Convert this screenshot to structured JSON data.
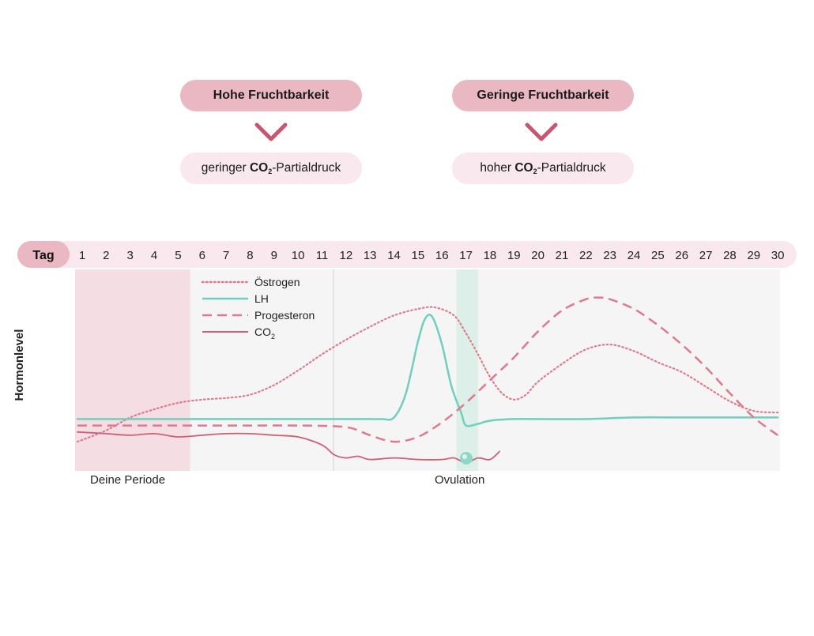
{
  "top": {
    "high_label": "Hohe Fruchtbarkeit",
    "low_label": "Geringe Fruchtbarkeit",
    "high_note_prefix": "geringer ",
    "high_note_co": "CO",
    "high_note_sub": "2",
    "high_note_suffix": "-Partialdruck",
    "low_note_prefix": "hoher ",
    "low_note_co": "CO",
    "low_note_sub": "2",
    "low_note_suffix": "-Partialdruck",
    "chevron_icon": "chevron-down-icon",
    "chevron_color": "#c9566f"
  },
  "chart_data": {
    "type": "line",
    "xlabel": "Tag",
    "ylabel": "Hormonlevel",
    "x": [
      1,
      2,
      3,
      4,
      5,
      6,
      7,
      8,
      9,
      10,
      11,
      12,
      13,
      14,
      15,
      16,
      17,
      18,
      19,
      20,
      21,
      22,
      23,
      24,
      25,
      26,
      27,
      28,
      29,
      30
    ],
    "regions": [
      {
        "label": "Deine Periode",
        "from_day": 0.7,
        "to_day": 5.5,
        "color": "#f4dde3"
      },
      {
        "label": "Ovulation",
        "from_day": 16.6,
        "to_day": 17.5,
        "color": "#dcefe9"
      }
    ],
    "ovulation_marker_day": 17,
    "ovulation_icon": "egg-icon",
    "series": [
      {
        "name": "Östrogen",
        "style": "dotted",
        "color": "#e0798e",
        "x": [
          0.7,
          2,
          3,
          4,
          5,
          6,
          7,
          8,
          9,
          10,
          11,
          12,
          13,
          14,
          15,
          15.7,
          16.5,
          17,
          17.5,
          18,
          18.5,
          19,
          19.5,
          20,
          21,
          22,
          23,
          24,
          25,
          26,
          27,
          28,
          29,
          30
        ],
        "y": [
          18,
          25,
          33,
          38,
          42,
          44,
          45,
          47,
          53,
          62,
          72,
          81,
          89,
          96,
          100,
          101,
          96,
          85,
          72,
          58,
          48,
          44,
          47,
          55,
          66,
          75,
          78,
          74,
          67,
          61,
          52,
          43,
          37,
          36
        ]
      },
      {
        "name": "LH",
        "style": "solid",
        "color": "#6fd0bd",
        "x": [
          0.7,
          2,
          4,
          6,
          8,
          10,
          12,
          13,
          13.5,
          14,
          14.5,
          15,
          15.3,
          15.6,
          16,
          16.4,
          16.8,
          17,
          17.5,
          18,
          19,
          20,
          22,
          24,
          26,
          28,
          30
        ],
        "y": [
          32,
          32,
          32,
          32,
          32,
          32,
          32,
          32,
          32,
          33,
          48,
          80,
          94,
          95,
          78,
          52,
          36,
          28,
          29,
          31,
          32,
          32,
          32,
          33,
          33,
          33,
          33
        ]
      },
      {
        "name": "Progesteron",
        "style": "dashed",
        "color": "#e0798e",
        "x": [
          0.7,
          2,
          4,
          6,
          8,
          10,
          12,
          13,
          14,
          15,
          16,
          17,
          18,
          19,
          20,
          21,
          22,
          22.5,
          23,
          24,
          25,
          26,
          27,
          28,
          29,
          30
        ],
        "y": [
          28,
          28,
          28,
          28,
          28,
          28,
          27,
          22,
          18,
          21,
          30,
          42,
          56,
          70,
          86,
          99,
          106,
          107,
          106,
          100,
          90,
          78,
          64,
          48,
          33,
          22
        ]
      },
      {
        "name": "CO2",
        "style": "solid",
        "color": "#cf6078",
        "x": [
          0.7,
          2,
          3,
          4,
          5,
          6,
          7,
          8,
          9,
          10,
          11,
          11.5,
          12,
          12.5,
          13,
          14,
          15,
          16,
          16.5,
          17,
          17.5,
          18,
          18.4
        ],
        "y": [
          24,
          23,
          22,
          23,
          21,
          22,
          23,
          23,
          22,
          21,
          16,
          10,
          8,
          9,
          7,
          8,
          7,
          7,
          8,
          5,
          8,
          7,
          12
        ]
      }
    ]
  },
  "legend": {
    "items": [
      "Östrogen",
      "LH",
      "Progesteron",
      "CO"
    ],
    "co2_sub": "2"
  },
  "tag_label": "Tag",
  "day_labels": [
    "1",
    "2",
    "3",
    "4",
    "5",
    "6",
    "7",
    "8",
    "9",
    "10",
    "11",
    "12",
    "13",
    "14",
    "15",
    "16",
    "17",
    "18",
    "19",
    "20",
    "21",
    "22",
    "23",
    "24",
    "25",
    "26",
    "27",
    "28",
    "29",
    "30"
  ],
  "region_labels": {
    "period": "Deine Periode",
    "ovulation": "Ovulation"
  }
}
